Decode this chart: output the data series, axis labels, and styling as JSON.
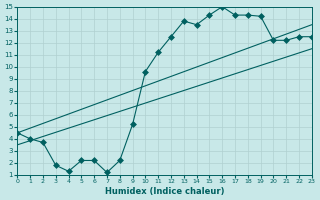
{
  "xlabel": "Humidex (Indice chaleur)",
  "ylabel": "",
  "bg_color": "#c8e8e8",
  "grid_color": "#b0d0d0",
  "line_color": "#006060",
  "xlim": [
    0,
    23
  ],
  "ylim": [
    1,
    15
  ],
  "xticks": [
    0,
    1,
    2,
    3,
    4,
    5,
    6,
    7,
    8,
    9,
    10,
    11,
    12,
    13,
    14,
    15,
    16,
    17,
    18,
    19,
    20,
    21,
    22,
    23
  ],
  "yticks": [
    1,
    2,
    3,
    4,
    5,
    6,
    7,
    8,
    9,
    10,
    11,
    12,
    13,
    14,
    15
  ],
  "line1_x": [
    0,
    1,
    2,
    3,
    4,
    5,
    6,
    7,
    8,
    9,
    10,
    11,
    12,
    13,
    14,
    15,
    16,
    17,
    18,
    19,
    20,
    21,
    22,
    23
  ],
  "line1_y": [
    4.5,
    4.0,
    3.7,
    1.8,
    1.3,
    2.2,
    2.2,
    1.2,
    2.2,
    5.2,
    9.6,
    11.2,
    12.5,
    13.8,
    13.5,
    14.3,
    15.0,
    14.3,
    14.3,
    14.2,
    12.2,
    12.2,
    12.5,
    12.5
  ],
  "line2_x": [
    0,
    23
  ],
  "line2_y": [
    3.5,
    11.5
  ],
  "line3_x": [
    0,
    23
  ],
  "line3_y": [
    4.5,
    13.5
  ],
  "markersize": 3
}
